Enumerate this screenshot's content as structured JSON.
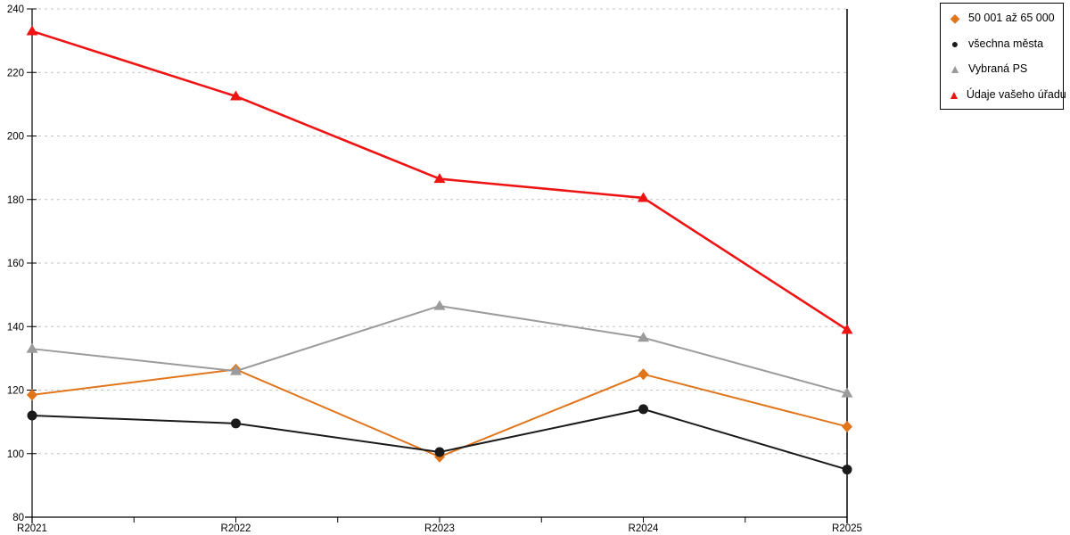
{
  "chart_data": {
    "type": "line",
    "title": "",
    "xlabel": "",
    "ylabel": "",
    "categories": [
      "R2021",
      "R2022",
      "R2023",
      "R2024",
      "R2025"
    ],
    "series": [
      {
        "name": "50 001 až 65 000",
        "marker": "diamond",
        "color": "#E0751C",
        "values": [
          118.5,
          126.5,
          99,
          125,
          108.5
        ]
      },
      {
        "name": "všechna města",
        "marker": "circle",
        "color": "#1A1A1A",
        "values": [
          112,
          109.5,
          100.5,
          114,
          95
        ]
      },
      {
        "name": "Vybraná PS",
        "marker": "triangle",
        "color": "#9B9B9B",
        "values": [
          133,
          126,
          146.5,
          136.5,
          119
        ]
      },
      {
        "name": "Údaje vašeho úřadu",
        "marker": "triangle",
        "color": "#EE1414",
        "values": [
          233,
          212.5,
          186.5,
          180.5,
          139
        ]
      }
    ],
    "ylim": [
      80,
      240
    ],
    "y_ticks": [
      80,
      100,
      120,
      140,
      160,
      180,
      200,
      220,
      240
    ],
    "grid": "horizontal-dashed",
    "legend_position": "top-right"
  },
  "colors": {
    "background": "#FFFFFF",
    "grid": "#C4C4C4",
    "axis": "#000000",
    "tick_label": "#000000",
    "legend_border": "#000000"
  }
}
